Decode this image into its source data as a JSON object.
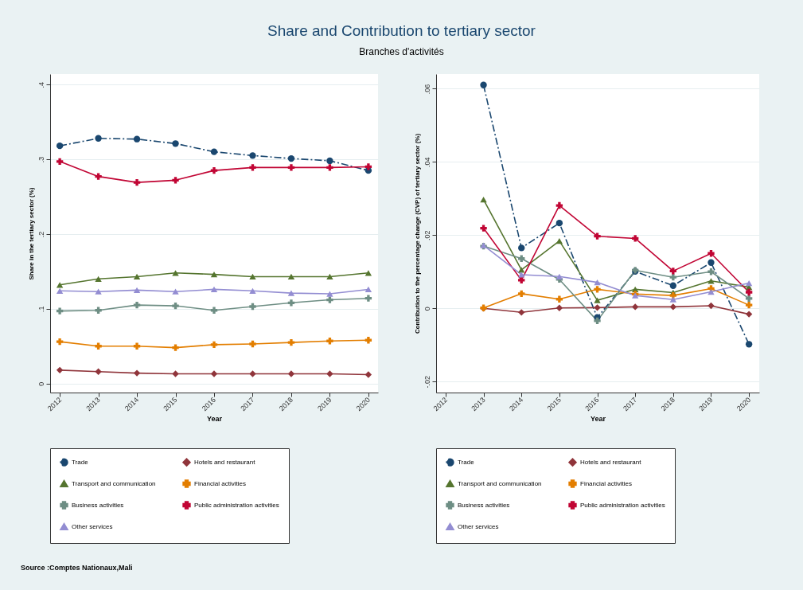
{
  "chart_data": [
    {
      "type": "line",
      "title": "Share and Contribution to tertiary sector",
      "subtitle": "Branches d'activités",
      "xlabel": "Year",
      "ylabel": "Share in the tertiary sector (%)",
      "x": [
        2012,
        2013,
        2014,
        2015,
        2016,
        2017,
        2018,
        2019,
        2020
      ],
      "xlim": [
        2011.75,
        2020.25
      ],
      "xticks": [
        2012,
        2013,
        2014,
        2015,
        2016,
        2017,
        2018,
        2019,
        2020
      ],
      "ylim": [
        -0.012,
        0.414
      ],
      "yticks": [
        0,
        {
          "value": 0.1,
          "label": ".1"
        },
        {
          "value": 0.2,
          "label": ".2"
        },
        {
          "value": 0.3,
          "label": ".3"
        },
        {
          "value": 0.4,
          "label": ".4"
        }
      ],
      "grid": "y",
      "legend": "bottom",
      "annotations": [
        "Source :Comptes Nationaux,Mali"
      ],
      "series": [
        {
          "name": "Trade",
          "color": "#1a476f",
          "marker": "circle",
          "line_style": "dashed",
          "values": [
            0.318,
            0.328,
            0.327,
            0.321,
            0.31,
            0.305,
            0.301,
            0.298,
            0.285
          ]
        },
        {
          "name": "Hotels and restaurant",
          "color": "#90353b",
          "marker": "diamond",
          "line_style": "solid",
          "values": [
            0.018,
            0.016,
            0.014,
            0.013,
            0.013,
            0.013,
            0.013,
            0.013,
            0.012
          ]
        },
        {
          "name": "Transport and communication",
          "color": "#55752f",
          "marker": "triangle",
          "line_style": "solid",
          "values": [
            0.132,
            0.14,
            0.143,
            0.148,
            0.146,
            0.143,
            0.143,
            0.143,
            0.148
          ]
        },
        {
          "name": "Financial activities",
          "color": "#e37e00",
          "marker": "cross",
          "line_style": "solid",
          "values": [
            0.056,
            0.05,
            0.05,
            0.048,
            0.052,
            0.053,
            0.055,
            0.057,
            0.058
          ]
        },
        {
          "name": "Business activities",
          "color": "#6e8e84",
          "marker": "cross",
          "line_style": "solid",
          "values": [
            0.097,
            0.098,
            0.105,
            0.104,
            0.098,
            0.103,
            0.108,
            0.112,
            0.114
          ]
        },
        {
          "name": "Public administration activities",
          "color": "#c10534",
          "marker": "cross",
          "line_style": "solid",
          "values": [
            0.297,
            0.277,
            0.269,
            0.272,
            0.285,
            0.289,
            0.289,
            0.289,
            0.29
          ]
        },
        {
          "name": "Other services",
          "color": "#938dd2",
          "marker": "triangle",
          "line_style": "solid",
          "values": [
            0.124,
            0.123,
            0.125,
            0.123,
            0.126,
            0.124,
            0.121,
            0.12,
            0.126
          ]
        }
      ]
    },
    {
      "type": "line",
      "xlabel": "Year",
      "ylabel": "Contribution to the percentage change (CVP) of tertiary sector (%)",
      "xlim": [
        2011.75,
        2020.27
      ],
      "xticks": [
        2012,
        2013,
        2014,
        2015,
        2016,
        2017,
        2018,
        2019,
        2020
      ],
      "ylim": [
        -0.023,
        0.064
      ],
      "yticks": [
        {
          "value": -0.02,
          "label": "-.02"
        },
        0,
        {
          "value": 0.02,
          "label": ".02"
        },
        {
          "value": 0.04,
          "label": ".04"
        },
        {
          "value": 0.06,
          "label": ".06"
        }
      ],
      "grid": "y",
      "legend": "bottom",
      "series": [
        {
          "name": "Trade",
          "color": "#1a476f",
          "marker": "circle",
          "line_style": "dashed",
          "x": [
            2013,
            2014,
            2015,
            2016,
            2017,
            2018,
            2019,
            2020
          ],
          "values": [
            0.061,
            0.0165,
            0.0233,
            -0.0025,
            0.0101,
            0.0062,
            0.0125,
            -0.0098
          ]
        },
        {
          "name": "Hotels and restaurant",
          "color": "#90353b",
          "marker": "diamond",
          "line_style": "solid",
          "x": [
            2013,
            2014,
            2015,
            2016,
            2017,
            2018,
            2019,
            2020
          ],
          "values": [
            0.0,
            -0.0011,
            0.0001,
            0.0002,
            0.0004,
            0.0004,
            0.0007,
            -0.0016
          ]
        },
        {
          "name": "Transport and communication",
          "color": "#55752f",
          "marker": "triangle",
          "line_style": "solid",
          "x": [
            2013,
            2014,
            2015,
            2016,
            2017,
            2018,
            2019,
            2020
          ],
          "values": [
            0.0297,
            0.0105,
            0.0184,
            0.0022,
            0.0052,
            0.0043,
            0.0075,
            0.0058
          ]
        },
        {
          "name": "Financial activities",
          "color": "#e37e00",
          "marker": "cross",
          "line_style": "solid",
          "x": [
            2013,
            2014,
            2015,
            2016,
            2017,
            2018,
            2019,
            2020
          ],
          "values": [
            0.0001,
            0.004,
            0.0025,
            0.0052,
            0.0039,
            0.0035,
            0.0054,
            0.0009
          ]
        },
        {
          "name": "Business activities",
          "color": "#6e8e84",
          "marker": "cross",
          "line_style": "solid",
          "x": [
            2013,
            2014,
            2015,
            2016,
            2017,
            2018,
            2019,
            2020
          ],
          "values": [
            0.017,
            0.0136,
            0.0079,
            -0.0034,
            0.0104,
            0.0085,
            0.01,
            0.0027
          ]
        },
        {
          "name": "Public administration activities",
          "color": "#c10534",
          "marker": "cross",
          "line_style": "solid",
          "x": [
            2013,
            2014,
            2015,
            2016,
            2017,
            2018,
            2019,
            2020
          ],
          "values": [
            0.0219,
            0.0077,
            0.0281,
            0.0197,
            0.0191,
            0.0102,
            0.015,
            0.0044
          ]
        },
        {
          "name": "Other services",
          "color": "#938dd2",
          "marker": "triangle",
          "line_style": "solid",
          "x": [
            2013,
            2014,
            2015,
            2016,
            2017,
            2018,
            2019,
            2020
          ],
          "values": [
            0.0172,
            0.0092,
            0.0087,
            0.0071,
            0.0035,
            0.0024,
            0.0045,
            0.0069
          ]
        }
      ]
    }
  ]
}
